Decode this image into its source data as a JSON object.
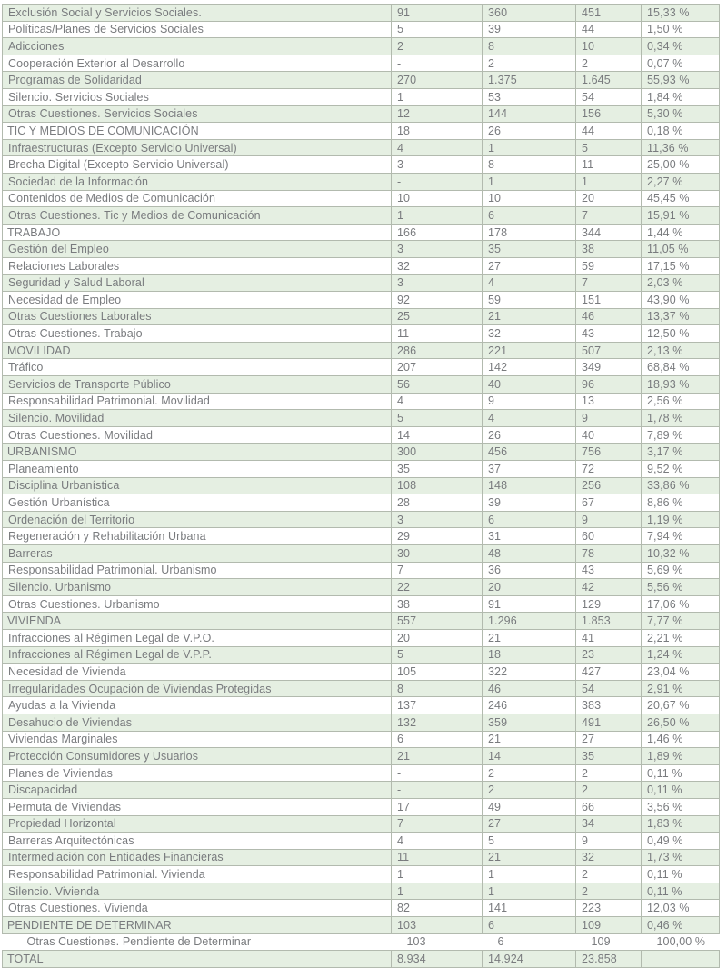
{
  "table": {
    "description": "Tabla de expedientes por materia y submateria",
    "colors": {
      "row_green": "#e5efe2",
      "row_white": "#ffffff",
      "border": "#b2baae",
      "text": "#797b7e"
    },
    "rows": [
      {
        "label": "Exclusión Social y Servicios Sociales.",
        "style": "item",
        "values": [
          "91",
          "360",
          "451",
          "15,33 %"
        ]
      },
      {
        "label": "Políticas/Planes de Servicios Sociales",
        "style": "item",
        "values": [
          "5",
          "39",
          "44",
          "1,50 %"
        ]
      },
      {
        "label": "Adicciones",
        "style": "item",
        "values": [
          "2",
          "8",
          "10",
          "0,34 %"
        ]
      },
      {
        "label": "Cooperación Exterior al Desarrollo",
        "style": "item",
        "values": [
          "-",
          "2",
          "2",
          "0,07 %"
        ]
      },
      {
        "label": "Programas de Solidaridad",
        "style": "item",
        "values": [
          "270",
          "1.375",
          "1.645",
          "55,93 %"
        ]
      },
      {
        "label": "Silencio. Servicios Sociales",
        "style": "item",
        "values": [
          "1",
          "53",
          "54",
          "1,84 %"
        ]
      },
      {
        "label": "Otras Cuestiones. Servicios Sociales",
        "style": "item",
        "values": [
          "12",
          "144",
          "156",
          "5,30 %"
        ]
      },
      {
        "label": "TIC Y MEDIOS DE COMUNICACIÓN",
        "style": "section",
        "values": [
          "18",
          "26",
          "44",
          "0,18 %"
        ]
      },
      {
        "label": "Infraestructuras (Excepto Servicio Universal)",
        "style": "item",
        "values": [
          "4",
          "1",
          "5",
          "11,36 %"
        ]
      },
      {
        "label": "Brecha Digital (Excepto Servicio Universal)",
        "style": "item",
        "values": [
          "3",
          "8",
          "11",
          "25,00 %"
        ]
      },
      {
        "label": "Sociedad de la Información",
        "style": "item",
        "values": [
          "-",
          "1",
          "1",
          "2,27 %"
        ]
      },
      {
        "label": "Contenidos de Medios de Comunicación",
        "style": "item",
        "values": [
          "10",
          "10",
          "20",
          "45,45 %"
        ]
      },
      {
        "label": "Otras Cuestiones. Tic y Medios de Comunicación",
        "style": "item",
        "values": [
          "1",
          "6",
          "7",
          "15,91 %"
        ]
      },
      {
        "label": "TRABAJO",
        "style": "section",
        "values": [
          "166",
          "178",
          "344",
          "1,44 %"
        ]
      },
      {
        "label": "Gestión del Empleo",
        "style": "item",
        "values": [
          "3",
          "35",
          "38",
          "11,05 %"
        ]
      },
      {
        "label": "Relaciones Laborales",
        "style": "item",
        "values": [
          "32",
          "27",
          "59",
          "17,15 %"
        ]
      },
      {
        "label": "Seguridad y Salud Laboral",
        "style": "item",
        "values": [
          "3",
          "4",
          "7",
          "2,03 %"
        ]
      },
      {
        "label": "Necesidad de Empleo",
        "style": "item",
        "values": [
          "92",
          "59",
          "151",
          "43,90 %"
        ]
      },
      {
        "label": "Otras Cuestiones Laborales",
        "style": "item",
        "values": [
          "25",
          "21",
          "46",
          "13,37 %"
        ]
      },
      {
        "label": "Otras Cuestiones. Trabajo",
        "style": "item",
        "values": [
          "11",
          "32",
          "43",
          "12,50 %"
        ]
      },
      {
        "label": "MOVILIDAD",
        "style": "section",
        "values": [
          "286",
          "221",
          "507",
          "2,13 %"
        ]
      },
      {
        "label": "Tráfico",
        "style": "item",
        "values": [
          "207",
          "142",
          "349",
          "68,84 %"
        ]
      },
      {
        "label": "Servicios de Transporte Público",
        "style": "item",
        "values": [
          "56",
          "40",
          "96",
          "18,93 %"
        ]
      },
      {
        "label": "Responsabilidad Patrimonial. Movilidad",
        "style": "item",
        "values": [
          "4",
          "9",
          "13",
          "2,56 %"
        ]
      },
      {
        "label": "Silencio. Movilidad",
        "style": "item",
        "values": [
          "5",
          "4",
          "9",
          "1,78 %"
        ]
      },
      {
        "label": "Otras Cuestiones. Movilidad",
        "style": "item",
        "values": [
          "14",
          "26",
          "40",
          "7,89 %"
        ]
      },
      {
        "label": "URBANISMO",
        "style": "section",
        "values": [
          "300",
          "456",
          "756",
          "3,17 %"
        ]
      },
      {
        "label": "Planeamiento",
        "style": "item",
        "values": [
          "35",
          "37",
          "72",
          "9,52 %"
        ]
      },
      {
        "label": "Disciplina Urbanística",
        "style": "item",
        "values": [
          "108",
          "148",
          "256",
          "33,86 %"
        ]
      },
      {
        "label": "Gestión Urbanística",
        "style": "item",
        "values": [
          "28",
          "39",
          "67",
          "8,86 %"
        ]
      },
      {
        "label": "Ordenación del Territorio",
        "style": "item",
        "values": [
          "3",
          "6",
          "9",
          "1,19 %"
        ]
      },
      {
        "label": "Regeneración y Rehabilitación Urbana",
        "style": "item",
        "values": [
          "29",
          "31",
          "60",
          "7,94 %"
        ]
      },
      {
        "label": "Barreras",
        "style": "item",
        "values": [
          "30",
          "48",
          "78",
          "10,32 %"
        ]
      },
      {
        "label": "Responsabilidad Patrimonial. Urbanismo",
        "style": "item",
        "values": [
          "7",
          "36",
          "43",
          "5,69 %"
        ]
      },
      {
        "label": "Silencio. Urbanismo",
        "style": "item",
        "values": [
          "22",
          "20",
          "42",
          "5,56 %"
        ]
      },
      {
        "label": "Otras Cuestiones. Urbanismo",
        "style": "item",
        "values": [
          "38",
          "91",
          "129",
          "17,06 %"
        ]
      },
      {
        "label": "VIVIENDA",
        "style": "section",
        "values": [
          "557",
          "1.296",
          "1.853",
          "7,77 %"
        ]
      },
      {
        "label": "Infracciones al Régimen Legal de V.P.O.",
        "style": "item",
        "values": [
          "20",
          "21",
          "41",
          "2,21 %"
        ]
      },
      {
        "label": "Infracciones al Régimen Legal de V.P.P.",
        "style": "item",
        "values": [
          "5",
          "18",
          "23",
          "1,24 %"
        ]
      },
      {
        "label": "Necesidad de Vivienda",
        "style": "item",
        "values": [
          "105",
          "322",
          "427",
          "23,04 %"
        ]
      },
      {
        "label": "Irregularidades Ocupación de Viviendas Protegidas",
        "style": "item",
        "values": [
          "8",
          "46",
          "54",
          "2,91 %"
        ]
      },
      {
        "label": "Ayudas a la Vivienda",
        "style": "item",
        "values": [
          "137",
          "246",
          "383",
          "20,67 %"
        ]
      },
      {
        "label": "Desahucio de Viviendas",
        "style": "item",
        "values": [
          "132",
          "359",
          "491",
          "26,50 %"
        ]
      },
      {
        "label": "Viviendas Marginales",
        "style": "item",
        "values": [
          "6",
          "21",
          "27",
          "1,46 %"
        ]
      },
      {
        "label": "Protección Consumidores y Usuarios",
        "style": "item",
        "values": [
          "21",
          "14",
          "35",
          "1,89 %"
        ]
      },
      {
        "label": "Planes de Viviendas",
        "style": "item",
        "values": [
          "-",
          "2",
          "2",
          "0,11 %"
        ]
      },
      {
        "label": "Discapacidad",
        "style": "item",
        "values": [
          "-",
          "2",
          "2",
          "0,11 %"
        ]
      },
      {
        "label": "Permuta de Viviendas",
        "style": "item",
        "values": [
          "17",
          "49",
          "66",
          "3,56 %"
        ]
      },
      {
        "label": "Propiedad Horizontal",
        "style": "item",
        "values": [
          "7",
          "27",
          "34",
          "1,83 %"
        ]
      },
      {
        "label": "Barreras Arquitectónicas",
        "style": "item",
        "values": [
          "4",
          "5",
          "9",
          "0,49 %"
        ]
      },
      {
        "label": "Intermediación con Entidades Financieras",
        "style": "item",
        "values": [
          "11",
          "21",
          "32",
          "1,73 %"
        ]
      },
      {
        "label": "Responsabilidad Patrimonial. Vivienda",
        "style": "item",
        "values": [
          "1",
          "1",
          "2",
          "0,11 %"
        ]
      },
      {
        "label": "Silencio. Vivienda",
        "style": "item",
        "values": [
          "1",
          "1",
          "2",
          "0,11 %"
        ]
      },
      {
        "label": "Otras Cuestiones. Vivienda",
        "style": "item",
        "values": [
          "82",
          "141",
          "223",
          "12,03 %"
        ]
      },
      {
        "label": "PENDIENTE DE DETERMINAR",
        "style": "section",
        "values": [
          "103",
          "6",
          "109",
          "0,46 %"
        ]
      },
      {
        "label": "Otras Cuestiones. Pendiente de Determinar",
        "style": "plain",
        "values": [
          "103",
          "6",
          "109",
          "100,00 %"
        ]
      },
      {
        "label": "TOTAL",
        "style": "section",
        "values": [
          "8.934",
          "14.924",
          "23.858",
          ""
        ]
      }
    ]
  }
}
